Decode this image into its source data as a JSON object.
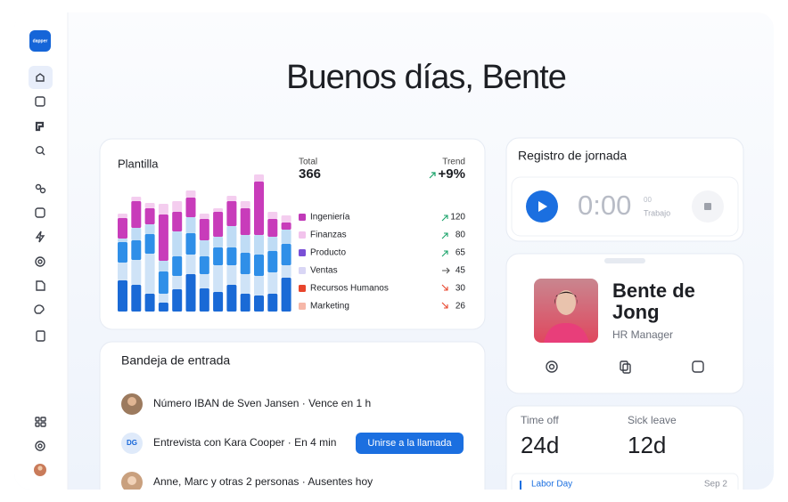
{
  "sidebar": {
    "logo": "dapper"
  },
  "greeting": "Buenos días, Bente",
  "plantilla": {
    "title": "Plantilla",
    "total_label": "Total",
    "total": "366",
    "trend_label": "Trend",
    "trend": "+9%",
    "legend": [
      {
        "name": "Ingeniería",
        "color": "#c03ab8",
        "value": "120",
        "arrow": "up"
      },
      {
        "name": "Finanzas",
        "color": "#f2c3ec",
        "value": "80",
        "arrow": "up"
      },
      {
        "name": "Producto",
        "color": "#7a4fd6",
        "value": "65",
        "arrow": "up"
      },
      {
        "name": "Ventas",
        "color": "#d9d6f5",
        "value": "45",
        "arrow": "flat"
      },
      {
        "name": "Recursos Humanos",
        "color": "#e8452c",
        "value": "30",
        "arrow": "down"
      },
      {
        "name": "Marketing",
        "color": "#f6b7a8",
        "value": "26",
        "arrow": "down"
      }
    ],
    "bar_colors": [
      "#1a6ad6",
      "#cfe3f7",
      "#2f8fe8",
      "#bfdcf5",
      "#c83cba",
      "#f4cdef"
    ],
    "bars": [
      [
        35,
        20,
        23,
        4,
        23,
        5
      ],
      [
        30,
        28,
        22,
        14,
        30,
        5
      ],
      [
        20,
        45,
        22,
        11,
        18,
        6
      ],
      [
        10,
        10,
        25,
        12,
        52,
        12
      ],
      [
        25,
        15,
        22,
        28,
        22,
        12
      ],
      [
        42,
        22,
        24,
        18,
        22,
        8
      ],
      [
        26,
        16,
        20,
        18,
        24,
        6
      ],
      [
        22,
        30,
        20,
        12,
        28,
        4
      ],
      [
        30,
        22,
        20,
        24,
        28,
        6
      ],
      [
        20,
        22,
        24,
        20,
        30,
        8
      ],
      [
        18,
        22,
        24,
        22,
        60,
        8
      ],
      [
        20,
        24,
        24,
        16,
        20,
        8
      ],
      [
        38,
        14,
        24,
        16,
        8,
        8
      ]
    ]
  },
  "inbox": {
    "title": "Bandeja de entrada",
    "items": [
      {
        "text": "Número IBAN de Sven Jansen · Vence en 1 h"
      },
      {
        "initials": "DG",
        "text": "Entrevista con Kara Cooper · En 4 min",
        "button": "Unirse a la llamada"
      },
      {
        "text": "Anne, Marc y otras 2 personas · Ausentes hoy"
      }
    ]
  },
  "registro": {
    "title": "Registro de jornada",
    "time": "0:00",
    "seconds": "00",
    "status": "Trabajo"
  },
  "profile": {
    "name_lines": [
      "Bente de",
      "Jong"
    ],
    "role": "HR Manager"
  },
  "balances": {
    "time_off_label": "Time off",
    "time_off": "24d",
    "sick_leave_label": "Sick leave",
    "sick_leave": "12d",
    "holiday": "Labor Day",
    "holiday_date": "Sep 2"
  }
}
